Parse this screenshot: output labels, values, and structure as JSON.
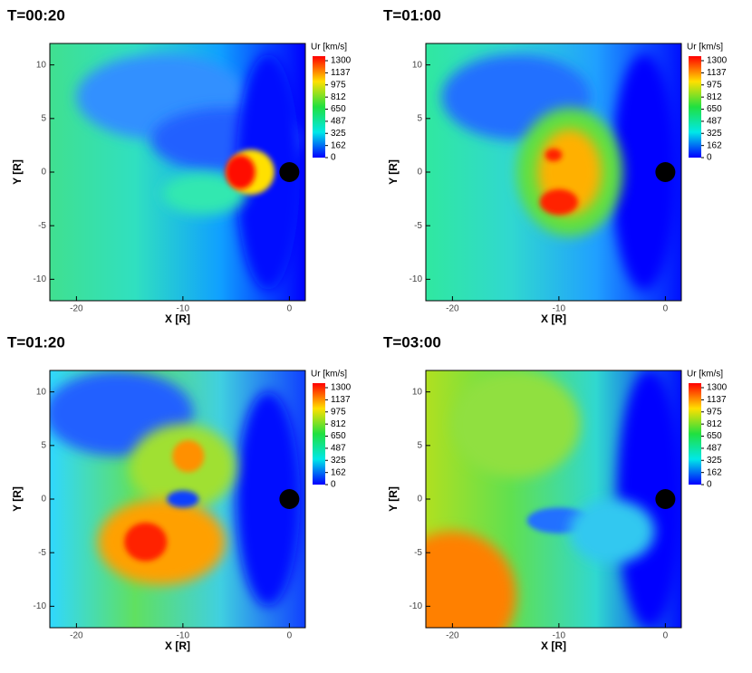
{
  "chart_data": [
    {
      "type": "contour",
      "title": "T=00:20",
      "xlabel": "X [R]",
      "ylabel": "Y [R]",
      "xlim": [
        -22.5,
        1.5
      ],
      "ylim": [
        -12,
        12
      ],
      "xticks": [
        -20,
        -10,
        0
      ],
      "yticks": [
        -10,
        -5,
        0,
        5,
        10
      ],
      "colorbar": {
        "title": "Ur [km/s]",
        "levels": [
          1300,
          1137,
          975,
          812,
          650,
          487,
          325,
          162,
          0
        ],
        "colors": [
          "#ff0000",
          "#ffe000",
          "#20e040",
          "#00e8e8",
          "#0000ff"
        ]
      }
    },
    {
      "type": "contour",
      "title": "T=01:00",
      "xlabel": "X [R]",
      "ylabel": "Y [R]",
      "xlim": [
        -22.5,
        1.5
      ],
      "ylim": [
        -12,
        12
      ],
      "xticks": [
        -20,
        -10,
        0
      ],
      "yticks": [
        -10,
        -5,
        0,
        5,
        10
      ],
      "colorbar": {
        "title": "Ur [km/s]",
        "levels": [
          1300,
          1137,
          975,
          812,
          650,
          487,
          325,
          162,
          0
        ],
        "colors": [
          "#ff0000",
          "#ffe000",
          "#20e040",
          "#00e8e8",
          "#0000ff"
        ]
      }
    },
    {
      "type": "contour",
      "title": "T=01:20",
      "xlabel": "X [R]",
      "ylabel": "Y [R]",
      "xlim": [
        -22.5,
        1.5
      ],
      "ylim": [
        -12,
        12
      ],
      "xticks": [
        -20,
        -10,
        0
      ],
      "yticks": [
        -10,
        -5,
        0,
        5,
        10
      ],
      "colorbar": {
        "title": "Ur [km/s]",
        "levels": [
          1300,
          1137,
          975,
          812,
          650,
          487,
          325,
          162,
          0
        ],
        "colors": [
          "#ff0000",
          "#ffe000",
          "#20e040",
          "#00e8e8",
          "#0000ff"
        ]
      }
    },
    {
      "type": "contour",
      "title": "T=03:00",
      "xlabel": "X [R]",
      "ylabel": "Y [R]",
      "xlim": [
        -22.5,
        1.5
      ],
      "ylim": [
        -12,
        12
      ],
      "xticks": [
        -20,
        -10,
        0
      ],
      "yticks": [
        -10,
        -5,
        0,
        5,
        10
      ],
      "colorbar": {
        "title": "Ur [km/s]",
        "levels": [
          1300,
          1137,
          975,
          812,
          650,
          487,
          325,
          162,
          0
        ],
        "colors": [
          "#ff0000",
          "#ffe000",
          "#20e040",
          "#00e8e8",
          "#0000ff"
        ]
      }
    }
  ]
}
